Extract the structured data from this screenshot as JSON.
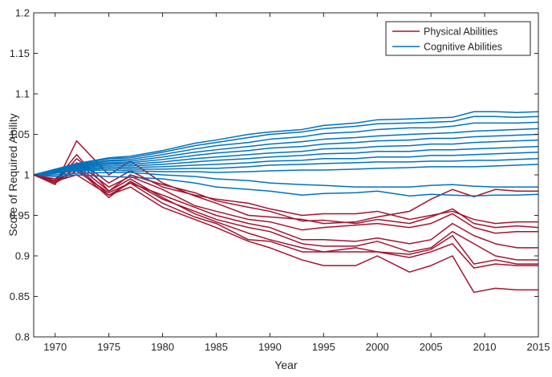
{
  "chart_data": {
    "type": "line",
    "xlabel": "Year",
    "ylabel": "Score of Required Ability",
    "xlim": [
      1968,
      2015
    ],
    "ylim": [
      0.8,
      1.2
    ],
    "xticks": [
      1970,
      1975,
      1980,
      1985,
      1990,
      1995,
      2000,
      2005,
      2010,
      2015
    ],
    "yticks": [
      "0.8",
      "0.85",
      "0.9",
      "0.95",
      "1",
      "1.05",
      "1.1",
      "1.15",
      "1.2"
    ],
    "grid": false,
    "legend_position": "top-right",
    "legend": [
      {
        "label": "Physical Abilities",
        "color": "#a2142f"
      },
      {
        "label": "Cognitive Abilities",
        "color": "#0072bd"
      }
    ],
    "colors": {
      "physical": "#a2142f",
      "cognitive": "#0072bd"
    },
    "groups": [
      {
        "name": "Physical Abilities",
        "color": "#a2142f",
        "x": [
          1968,
          1970,
          1972,
          1975,
          1977,
          1980,
          1983,
          1985,
          1988,
          1990,
          1993,
          1995,
          1998,
          2000,
          2003,
          2005,
          2007,
          2009,
          2011,
          2013,
          2015
        ],
        "lines": [
          [
            1.0,
            0.988,
            1.042,
            1.0,
            1.017,
            0.99,
            0.974,
            0.965,
            0.95,
            0.948,
            0.945,
            0.94,
            0.942,
            0.948,
            0.955,
            0.97,
            0.982,
            0.973,
            0.982,
            0.98,
            0.98
          ],
          [
            1.0,
            0.99,
            1.02,
            0.99,
            1.005,
            0.985,
            0.975,
            0.97,
            0.965,
            0.958,
            0.95,
            0.952,
            0.952,
            0.955,
            0.945,
            0.95,
            0.955,
            0.945,
            0.94,
            0.942,
            0.942
          ],
          [
            1.0,
            0.993,
            1.025,
            0.98,
            1.0,
            0.988,
            0.978,
            0.968,
            0.96,
            0.955,
            0.943,
            0.944,
            0.94,
            0.945,
            0.94,
            0.948,
            0.958,
            0.94,
            0.935,
            0.937,
            0.935
          ],
          [
            1.0,
            0.995,
            1.015,
            0.985,
            0.998,
            0.982,
            0.962,
            0.955,
            0.945,
            0.942,
            0.932,
            0.935,
            0.938,
            0.94,
            0.935,
            0.94,
            0.952,
            0.935,
            0.928,
            0.93,
            0.93
          ],
          [
            1.0,
            0.99,
            1.01,
            0.975,
            0.99,
            0.975,
            0.96,
            0.95,
            0.94,
            0.935,
            0.92,
            0.92,
            0.918,
            0.922,
            0.915,
            0.92,
            0.94,
            0.925,
            0.915,
            0.91,
            0.91
          ],
          [
            1.0,
            0.992,
            1.008,
            0.972,
            0.992,
            0.97,
            0.955,
            0.945,
            0.935,
            0.93,
            0.915,
            0.912,
            0.912,
            0.918,
            0.905,
            0.91,
            0.93,
            0.915,
            0.9,
            0.895,
            0.895
          ],
          [
            1.0,
            0.995,
            1.012,
            0.98,
            0.995,
            0.972,
            0.952,
            0.942,
            0.928,
            0.92,
            0.91,
            0.905,
            0.91,
            0.905,
            0.902,
            0.908,
            0.925,
            0.89,
            0.895,
            0.89,
            0.89
          ],
          [
            1.0,
            0.99,
            1.005,
            0.978,
            0.99,
            0.965,
            0.948,
            0.94,
            0.92,
            0.918,
            0.905,
            0.905,
            0.905,
            0.905,
            0.898,
            0.905,
            0.915,
            0.885,
            0.89,
            0.888,
            0.888
          ],
          [
            1.0,
            0.992,
            1.0,
            0.975,
            0.985,
            0.96,
            0.945,
            0.935,
            0.918,
            0.91,
            0.895,
            0.888,
            0.888,
            0.9,
            0.88,
            0.888,
            0.9,
            0.855,
            0.86,
            0.858,
            0.858
          ]
        ]
      },
      {
        "name": "Cognitive Abilities",
        "color": "#0072bd",
        "x": [
          1968,
          1970,
          1972,
          1975,
          1977,
          1980,
          1983,
          1985,
          1988,
          1990,
          1993,
          1995,
          1998,
          2000,
          2003,
          2005,
          2007,
          2009,
          2011,
          2013,
          2015
        ],
        "lines": [
          [
            1.0,
            0.998,
            1.0,
            0.998,
            0.997,
            0.995,
            0.99,
            0.985,
            0.982,
            0.98,
            0.975,
            0.977,
            0.978,
            0.98,
            0.974,
            0.976,
            0.975,
            0.974,
            0.975,
            0.975,
            0.976
          ],
          [
            1.0,
            1.0,
            1.002,
            1.003,
            1.003,
            1.0,
            0.998,
            0.995,
            0.993,
            0.99,
            0.988,
            0.987,
            0.985,
            0.985,
            0.985,
            0.987,
            0.988,
            0.986,
            0.985,
            0.985,
            0.985
          ],
          [
            1.0,
            1.002,
            1.005,
            1.006,
            1.005,
            1.004,
            1.004,
            1.003,
            1.004,
            1.005,
            1.006,
            1.006,
            1.007,
            1.008,
            1.009,
            1.01,
            1.01,
            1.01,
            1.011,
            1.012,
            1.013
          ],
          [
            1.0,
            1.002,
            1.006,
            1.008,
            1.007,
            1.007,
            1.008,
            1.008,
            1.01,
            1.012,
            1.013,
            1.014,
            1.015,
            1.016,
            1.016,
            1.017,
            1.017,
            1.018,
            1.018,
            1.019,
            1.02
          ],
          [
            1.0,
            1.003,
            1.007,
            1.01,
            1.009,
            1.01,
            1.012,
            1.013,
            1.015,
            1.017,
            1.018,
            1.02,
            1.02,
            1.022,
            1.022,
            1.024,
            1.024,
            1.025,
            1.026,
            1.027,
            1.028
          ],
          [
            1.0,
            1.004,
            1.008,
            1.012,
            1.011,
            1.013,
            1.016,
            1.018,
            1.02,
            1.022,
            1.024,
            1.026,
            1.027,
            1.029,
            1.029,
            1.031,
            1.031,
            1.032,
            1.033,
            1.034,
            1.035
          ],
          [
            1.0,
            1.005,
            1.009,
            1.014,
            1.013,
            1.016,
            1.02,
            1.022,
            1.025,
            1.027,
            1.029,
            1.032,
            1.033,
            1.035,
            1.036,
            1.038,
            1.038,
            1.04,
            1.041,
            1.042,
            1.043
          ],
          [
            1.0,
            1.005,
            1.01,
            1.015,
            1.015,
            1.019,
            1.024,
            1.027,
            1.03,
            1.033,
            1.035,
            1.038,
            1.04,
            1.042,
            1.043,
            1.045,
            1.045,
            1.047,
            1.048,
            1.049,
            1.05
          ],
          [
            1.0,
            1.006,
            1.011,
            1.017,
            1.017,
            1.022,
            1.028,
            1.031,
            1.035,
            1.038,
            1.041,
            1.044,
            1.046,
            1.048,
            1.05,
            1.051,
            1.052,
            1.054,
            1.055,
            1.056,
            1.057
          ],
          [
            1.0,
            1.006,
            1.012,
            1.018,
            1.019,
            1.025,
            1.032,
            1.036,
            1.04,
            1.044,
            1.047,
            1.051,
            1.053,
            1.056,
            1.058,
            1.058,
            1.06,
            1.064,
            1.064,
            1.064,
            1.065
          ],
          [
            1.0,
            1.007,
            1.013,
            1.02,
            1.021,
            1.028,
            1.036,
            1.04,
            1.046,
            1.05,
            1.053,
            1.057,
            1.06,
            1.063,
            1.064,
            1.065,
            1.066,
            1.072,
            1.072,
            1.071,
            1.072
          ],
          [
            1.0,
            1.007,
            1.014,
            1.021,
            1.023,
            1.03,
            1.039,
            1.043,
            1.05,
            1.053,
            1.056,
            1.061,
            1.064,
            1.068,
            1.069,
            1.07,
            1.071,
            1.078,
            1.078,
            1.077,
            1.078
          ]
        ]
      }
    ]
  }
}
